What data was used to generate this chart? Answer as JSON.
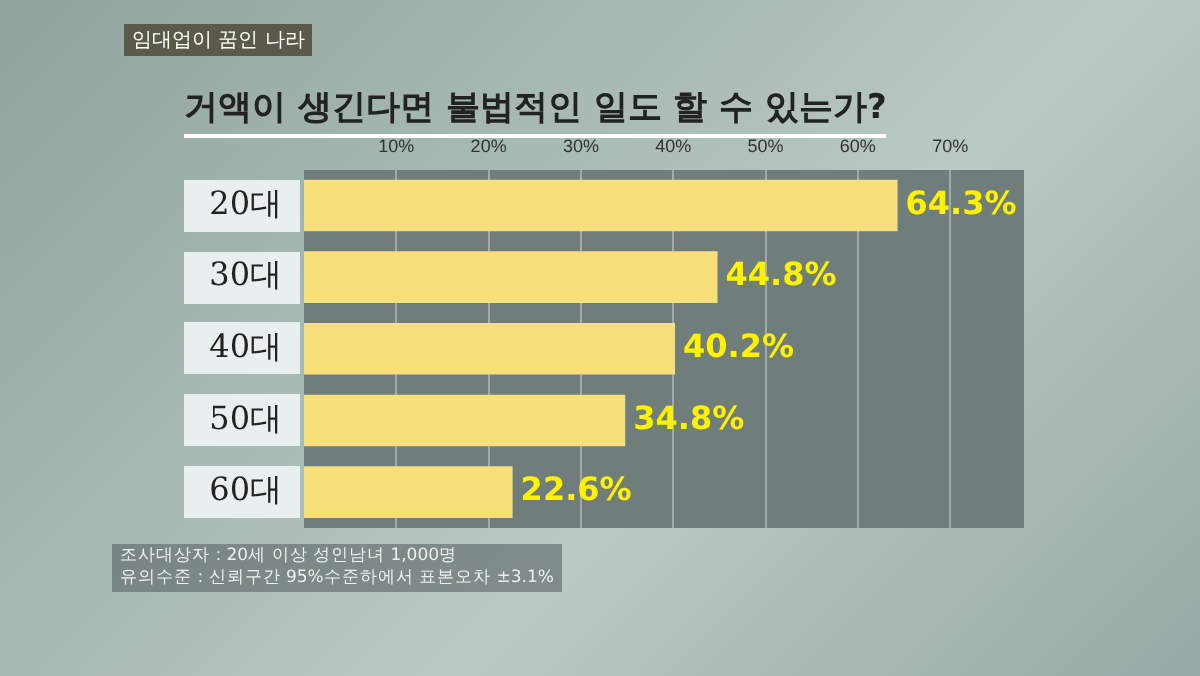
{
  "chart_data": {
    "type": "bar",
    "orientation": "horizontal",
    "title": "거액이 생긴다면 불법적인 일도 할 수 있는가?",
    "categories": [
      "20대",
      "30대",
      "40대",
      "50대",
      "60대"
    ],
    "values": [
      64.3,
      44.8,
      40.2,
      34.8,
      22.6
    ],
    "color": "#f7e07a",
    "value_labels": [
      "64.3%",
      "44.8%",
      "40.2%",
      "34.8%",
      "22.6%"
    ],
    "xlim": [
      0,
      78
    ],
    "xticks": [
      {
        "value": 10,
        "label": "10%"
      },
      {
        "value": 20,
        "label": "20%"
      },
      {
        "value": 30,
        "label": "30%"
      },
      {
        "value": 40,
        "label": "40%"
      },
      {
        "value": 50,
        "label": "50%"
      },
      {
        "value": 60,
        "label": "60%"
      },
      {
        "value": 70,
        "label": "70%"
      }
    ],
    "grid": "x",
    "annotations": [
      "임대업이 꿈인 나라",
      "조사대상자 : 20세 이상 성인남녀 1,000명",
      "유의수준 : 신뢰구간 95%수준하에서 표본오차 ±3.1%"
    ]
  }
}
